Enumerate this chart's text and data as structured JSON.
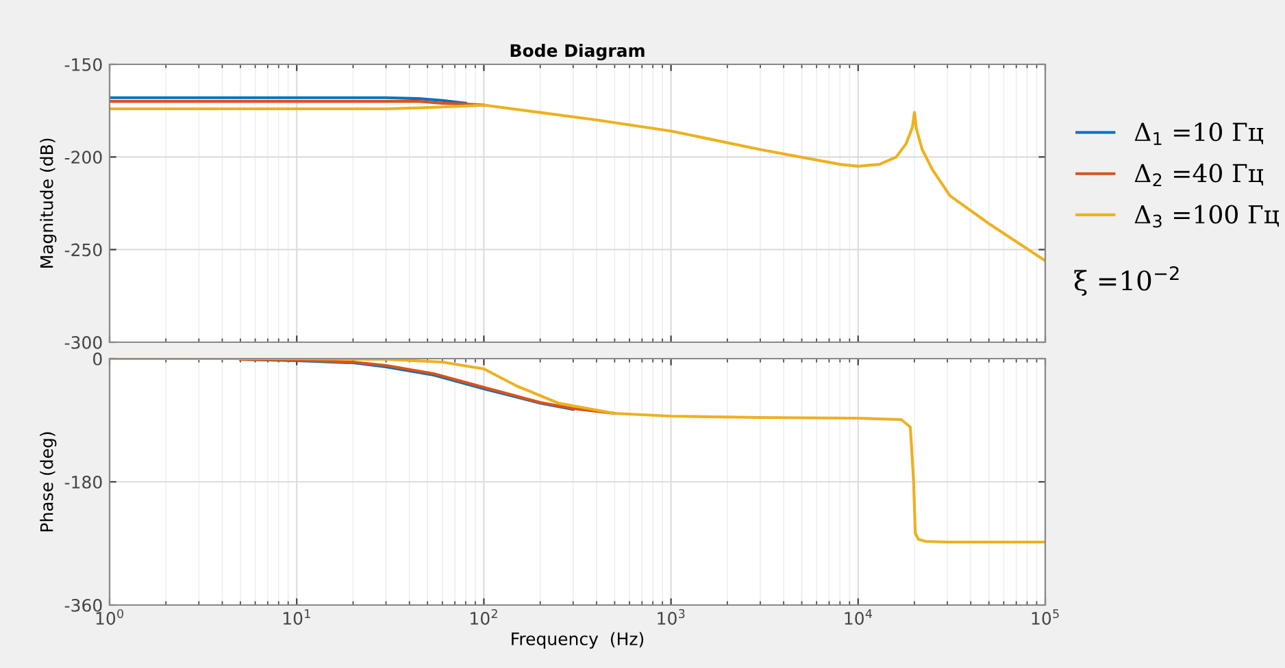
{
  "chart_data": [
    {
      "type": "line",
      "title": "Bode Diagram",
      "ylabel": "Magnitude (dB)",
      "log": "x",
      "grid": true,
      "legend": "right",
      "tick_labels": "y",
      "xlim": [
        1,
        100000
      ],
      "ylim": [
        -300,
        -150
      ],
      "yticks": [
        -300,
        -250,
        -200,
        -150
      ],
      "xticks": [
        {
          "value": 1,
          "label": null
        },
        {
          "value": 10,
          "label": null
        },
        {
          "value": 100,
          "label": null
        },
        {
          "value": 1000,
          "label": null
        },
        {
          "value": 10000,
          "label": null
        },
        {
          "value": 100000,
          "label": null
        }
      ],
      "annotations": [
        "ξ =10$^{−2}$"
      ],
      "series": [
        {
          "name": "Δ$_{1}$ =10 Гц",
          "color": "#0072bd",
          "x": [
            1,
            10,
            30,
            45,
            60,
            80
          ],
          "values": [
            -168,
            -168,
            -168,
            -168.5,
            -169.5,
            -171
          ]
        },
        {
          "name": "Δ$_{2}$ =40 Гц",
          "color": "#d95319",
          "x": [
            1,
            10,
            30,
            45,
            60,
            80,
            100
          ],
          "values": [
            -170,
            -170,
            -170,
            -170,
            -171,
            -171.5,
            -172
          ]
        },
        {
          "name": "Δ$_{3}$ =100 Гц",
          "color": "#edb120",
          "x": [
            1,
            10,
            30,
            45,
            60,
            80,
            100,
            200,
            400,
            1000,
            3000,
            8000,
            10000,
            13000,
            16000,
            18000,
            19500,
            20000,
            20500,
            22000,
            25000,
            31000,
            50000,
            100000
          ],
          "values": [
            -174,
            -174,
            -174,
            -173.5,
            -173,
            -172.5,
            -172,
            -176,
            -180,
            -186,
            -196,
            -204,
            -205,
            -204,
            -200,
            -193,
            -184,
            -176,
            -185,
            -196,
            -207,
            -221,
            -236,
            -256
          ]
        }
      ]
    },
    {
      "type": "line",
      "ylabel": "Phase (deg)",
      "xlabel": "Frequency  (Hz)",
      "log": "x",
      "grid": true,
      "xlim": [
        1,
        100000
      ],
      "ylim": [
        -360,
        0
      ],
      "yticks": [
        -360,
        -180,
        0
      ],
      "xticks": [
        {
          "value": 1,
          "label": "10$^{0}$"
        },
        {
          "value": 10,
          "label": "10$^{1}$"
        },
        {
          "value": 100,
          "label": "10$^{2}$"
        },
        {
          "value": 1000,
          "label": "10$^{3}$"
        },
        {
          "value": 10000,
          "label": "10$^{4}$"
        },
        {
          "value": 100000,
          "label": "10$^{5}$"
        }
      ],
      "series": [
        {
          "color": "#0072bd",
          "x": [
            5,
            10,
            20,
            30,
            54,
            100,
            200,
            300
          ],
          "values": [
            -1,
            -3,
            -6,
            -12,
            -24,
            -44,
            -65,
            -74
          ]
        },
        {
          "color": "#d95319",
          "x": [
            5,
            10,
            20,
            30,
            54,
            100,
            200,
            300,
            500
          ],
          "values": [
            -1,
            -2,
            -5,
            -10,
            -22,
            -42,
            -64,
            -73,
            -80
          ]
        },
        {
          "color": "#edb120",
          "x": [
            1,
            10,
            30,
            60,
            100,
            150,
            250,
            500,
            1000,
            3000,
            10000,
            17000,
            19000,
            19800,
            20200,
            21000,
            23000,
            30000,
            100000
          ],
          "values": [
            0,
            0,
            -1,
            -5,
            -15,
            -40,
            -65,
            -80,
            -84,
            -86,
            -87,
            -89,
            -100,
            -180,
            -255,
            -264,
            -267,
            -268,
            -268
          ]
        }
      ]
    }
  ]
}
